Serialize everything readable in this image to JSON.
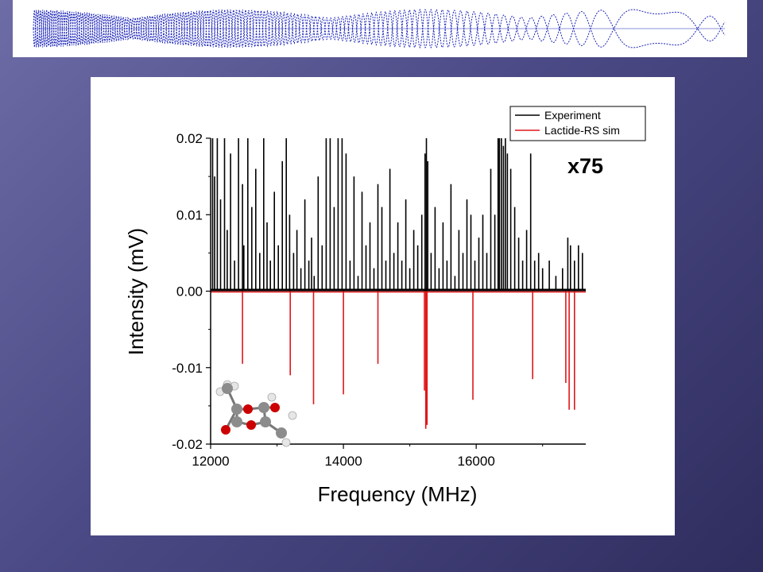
{
  "colors": {
    "background_top": "#6e6ca6",
    "background_bottom": "#2f2d5e",
    "banner_wave": "#1b24b8",
    "experiment": "#000000",
    "simulation": "#e0161a",
    "oxygen_atom": "#cc0000",
    "carbon_atom": "#8c8c8c",
    "hydrogen_atom": "#e6e6e6"
  },
  "icons": {
    "banner": "waveform-icon",
    "inset": "lactide-molecule-icon"
  },
  "chart_data": {
    "type": "line",
    "title": "",
    "xlabel": "Frequency (MHz)",
    "ylabel": "Intensity (mV)",
    "xlim": [
      12000,
      17650
    ],
    "ylim": [
      -0.02,
      0.02
    ],
    "xticks": [
      12000,
      14000,
      16000
    ],
    "xtick_labels": [
      "12000",
      "14000",
      "16000"
    ],
    "yticks": [
      0.02,
      0.01,
      0.0,
      -0.01,
      -0.02
    ],
    "ytick_labels": [
      "0.02",
      "0.01",
      "0.00",
      "-0.01",
      "-0.02"
    ],
    "grid": false,
    "legend": {
      "position": "top-right",
      "entries": [
        "Experiment",
        "Lactide-RS sim"
      ]
    },
    "annotation": "x75",
    "series": [
      {
        "name": "Experiment",
        "color": "#000000",
        "style": "stick",
        "x": [
          12030,
          12060,
          12100,
          12150,
          12210,
          12250,
          12300,
          12360,
          12420,
          12480,
          12500,
          12560,
          12620,
          12680,
          12740,
          12800,
          12850,
          12900,
          12960,
          13020,
          13080,
          13140,
          13190,
          13250,
          13300,
          13360,
          13420,
          13480,
          13520,
          13560,
          13620,
          13680,
          13740,
          13800,
          13860,
          13920,
          13980,
          14040,
          14100,
          14160,
          14220,
          14280,
          14340,
          14400,
          14460,
          14520,
          14580,
          14640,
          14700,
          14760,
          14820,
          14880,
          14940,
          15000,
          15060,
          15120,
          15180,
          15230,
          15250,
          15270,
          15320,
          15380,
          15440,
          15500,
          15560,
          15620,
          15680,
          15740,
          15800,
          15860,
          15920,
          15980,
          16040,
          16100,
          16160,
          16220,
          16280,
          16330,
          16350,
          16380,
          16410,
          16440,
          16470,
          16520,
          16580,
          16640,
          16700,
          16760,
          16820,
          16880,
          16940,
          17000,
          17100,
          17200,
          17300,
          17380,
          17420,
          17480,
          17540,
          17600
        ],
        "y": [
          0.02,
          0.015,
          0.02,
          0.012,
          0.02,
          0.008,
          0.018,
          0.004,
          0.02,
          0.014,
          0.006,
          0.02,
          0.011,
          0.016,
          0.005,
          0.02,
          0.009,
          0.004,
          0.013,
          0.006,
          0.017,
          0.02,
          0.01,
          0.005,
          0.008,
          0.003,
          0.012,
          0.004,
          0.007,
          0.002,
          0.015,
          0.006,
          0.02,
          0.02,
          0.011,
          0.02,
          0.02,
          0.018,
          0.004,
          0.015,
          0.002,
          0.013,
          0.006,
          0.009,
          0.003,
          0.014,
          0.011,
          0.004,
          0.016,
          0.005,
          0.009,
          0.004,
          0.012,
          0.003,
          0.008,
          0.006,
          0.01,
          0.018,
          0.02,
          0.017,
          0.005,
          0.011,
          0.003,
          0.009,
          0.004,
          0.014,
          0.002,
          0.008,
          0.005,
          0.012,
          0.01,
          0.004,
          0.007,
          0.01,
          0.005,
          0.016,
          0.01,
          0.02,
          0.02,
          0.02,
          0.019,
          0.02,
          0.018,
          0.016,
          0.011,
          0.007,
          0.004,
          0.008,
          0.018,
          0.004,
          0.005,
          0.003,
          0.004,
          0.002,
          0.003,
          0.007,
          0.006,
          0.004,
          0.006,
          0.005
        ]
      },
      {
        "name": "Lactide-RS sim",
        "color": "#e0161a",
        "style": "stick",
        "x": [
          12480,
          13200,
          13550,
          14000,
          14520,
          15220,
          15240,
          15260,
          15950,
          16850,
          17350,
          17400,
          17480
        ],
        "y": [
          -0.0095,
          -0.011,
          -0.0148,
          -0.0135,
          -0.0095,
          -0.013,
          -0.018,
          -0.0175,
          -0.0142,
          -0.0115,
          -0.012,
          -0.0155,
          -0.0155
        ]
      }
    ]
  }
}
